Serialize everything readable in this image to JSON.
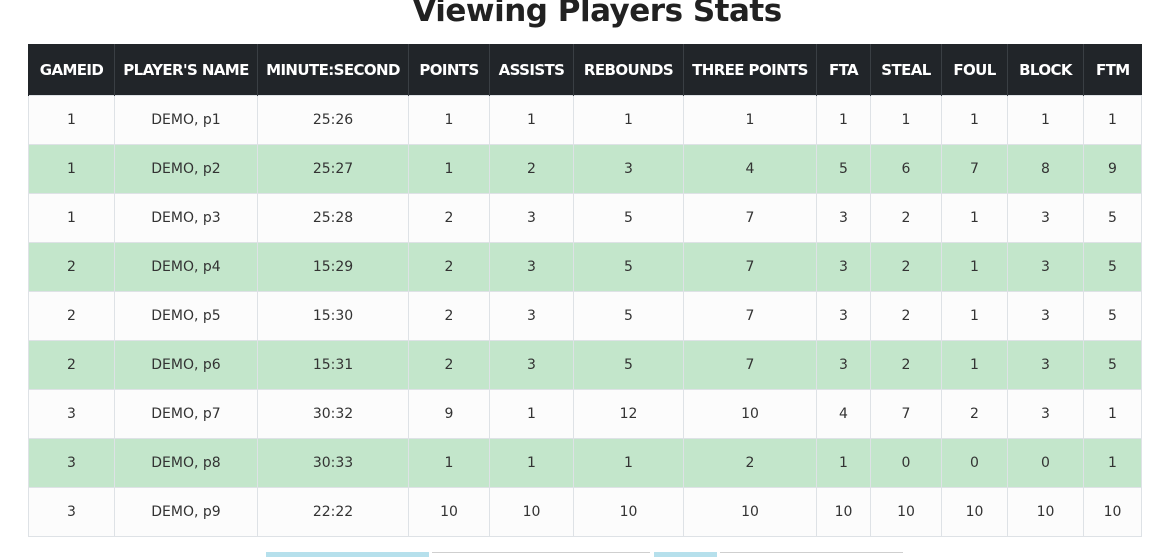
{
  "page": {
    "title": "Viewing Players Stats"
  },
  "table": {
    "headers": [
      "GAMEID",
      "PLAYER'S NAME",
      "MINUTE:SECOND",
      "POINTS",
      "ASSISTS",
      "REBOUNDS",
      "THREE POINTS",
      "FTA",
      "STEAL",
      "FOUL",
      "BLOCK",
      "FTM"
    ],
    "rows": [
      [
        "1",
        "DEMO, p1",
        "25:26",
        "1",
        "1",
        "1",
        "1",
        "1",
        "1",
        "1",
        "1",
        "1"
      ],
      [
        "1",
        "DEMO, p2",
        "25:27",
        "1",
        "2",
        "3",
        "4",
        "5",
        "6",
        "7",
        "8",
        "9"
      ],
      [
        "1",
        "DEMO, p3",
        "25:28",
        "2",
        "3",
        "5",
        "7",
        "3",
        "2",
        "1",
        "3",
        "5"
      ],
      [
        "2",
        "DEMO, p4",
        "15:29",
        "2",
        "3",
        "5",
        "7",
        "3",
        "2",
        "1",
        "3",
        "5"
      ],
      [
        "2",
        "DEMO, p5",
        "15:30",
        "2",
        "3",
        "5",
        "7",
        "3",
        "2",
        "1",
        "3",
        "5"
      ],
      [
        "2",
        "DEMO, p6",
        "15:31",
        "2",
        "3",
        "5",
        "7",
        "3",
        "2",
        "1",
        "3",
        "5"
      ],
      [
        "3",
        "DEMO, p7",
        "30:32",
        "9",
        "1",
        "12",
        "10",
        "4",
        "7",
        "2",
        "3",
        "1"
      ],
      [
        "3",
        "DEMO, p8",
        "30:33",
        "1",
        "1",
        "1",
        "2",
        "1",
        "0",
        "0",
        "0",
        "1"
      ],
      [
        "3",
        "DEMO, p9",
        "22:22",
        "10",
        "10",
        "10",
        "10",
        "10",
        "10",
        "10",
        "10",
        "10"
      ]
    ]
  },
  "colors": {
    "header_bg": "#212529",
    "row_stripe": "#c3e6cb",
    "row_plain": "#fcfcfc"
  }
}
